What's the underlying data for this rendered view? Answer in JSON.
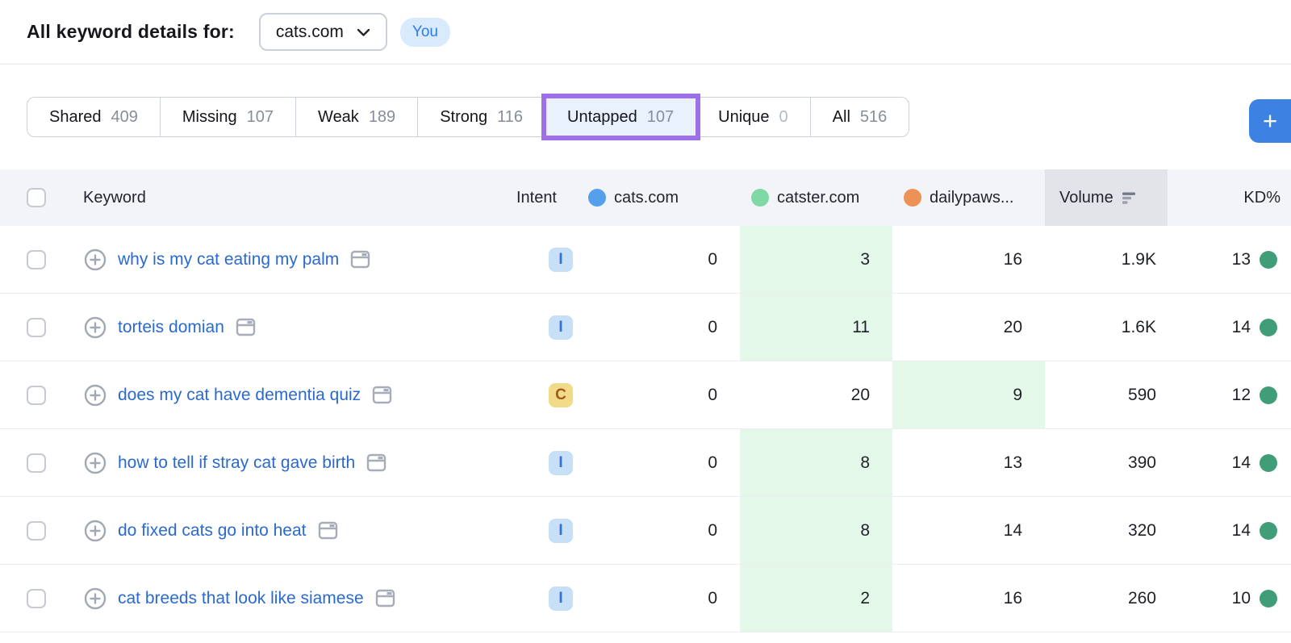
{
  "header": {
    "title": "All keyword details for:",
    "domain_dropdown": {
      "value": "cats.com"
    },
    "badge": "You"
  },
  "toolbar": {
    "tabs": [
      {
        "label": "Shared",
        "count": "409"
      },
      {
        "label": "Missing",
        "count": "107"
      },
      {
        "label": "Weak",
        "count": "189"
      },
      {
        "label": "Strong",
        "count": "116"
      },
      {
        "label": "Untapped",
        "count": "107",
        "active": true
      },
      {
        "label": "Unique",
        "count": "0",
        "muted_count": true
      },
      {
        "label": "All",
        "count": "516"
      }
    ],
    "add_button_label": "+"
  },
  "table": {
    "header": {
      "keyword": "Keyword",
      "intent": "Intent",
      "competitors": [
        {
          "name": "cats.com",
          "dot_color": "#54a0ec"
        },
        {
          "name": "catster.com",
          "dot_color": "#7ed9a4"
        },
        {
          "name": "dailypaws...",
          "dot_color": "#ee9156"
        }
      ],
      "volume": "Volume",
      "kd": "KD%",
      "volume_sorted": "descending"
    },
    "rows": [
      {
        "keyword": "why is my cat eating my palm",
        "intent": "I",
        "intent_type": "informational",
        "cats": "0",
        "catster": "3",
        "dailypaws": "16",
        "highlight": "catster",
        "volume": "1.9K",
        "kd": "13"
      },
      {
        "keyword": "torteis domian",
        "intent": "I",
        "intent_type": "informational",
        "cats": "0",
        "catster": "11",
        "dailypaws": "20",
        "highlight": "catster",
        "volume": "1.6K",
        "kd": "14"
      },
      {
        "keyword": "does my cat have dementia quiz",
        "intent": "C",
        "intent_type": "commercial",
        "cats": "0",
        "catster": "20",
        "dailypaws": "9",
        "highlight": "dailypaws",
        "volume": "590",
        "kd": "12"
      },
      {
        "keyword": "how to tell if stray cat gave birth",
        "intent": "I",
        "intent_type": "informational",
        "cats": "0",
        "catster": "8",
        "dailypaws": "13",
        "highlight": "catster",
        "volume": "390",
        "kd": "14"
      },
      {
        "keyword": "do fixed cats go into heat",
        "intent": "I",
        "intent_type": "informational",
        "cats": "0",
        "catster": "8",
        "dailypaws": "14",
        "highlight": "catster",
        "volume": "320",
        "kd": "14"
      },
      {
        "keyword": "cat breeds that look like siamese",
        "intent": "I",
        "intent_type": "informational",
        "cats": "0",
        "catster": "2",
        "dailypaws": "16",
        "highlight": "catster",
        "volume": "260",
        "kd": "10"
      }
    ]
  },
  "colors": {
    "accent_blue": "#3b82e2",
    "active_tab_border": "#9d70e8",
    "active_tab_bg": "#e9f1fd",
    "highlight_green_cell": "#e4f8ea",
    "kd_dot_green": "#3f9e77",
    "keyword_link_blue": "#2a6ace",
    "intent_informational_bg": "#c7e0f7",
    "intent_commercial_bg": "#f3da89"
  }
}
